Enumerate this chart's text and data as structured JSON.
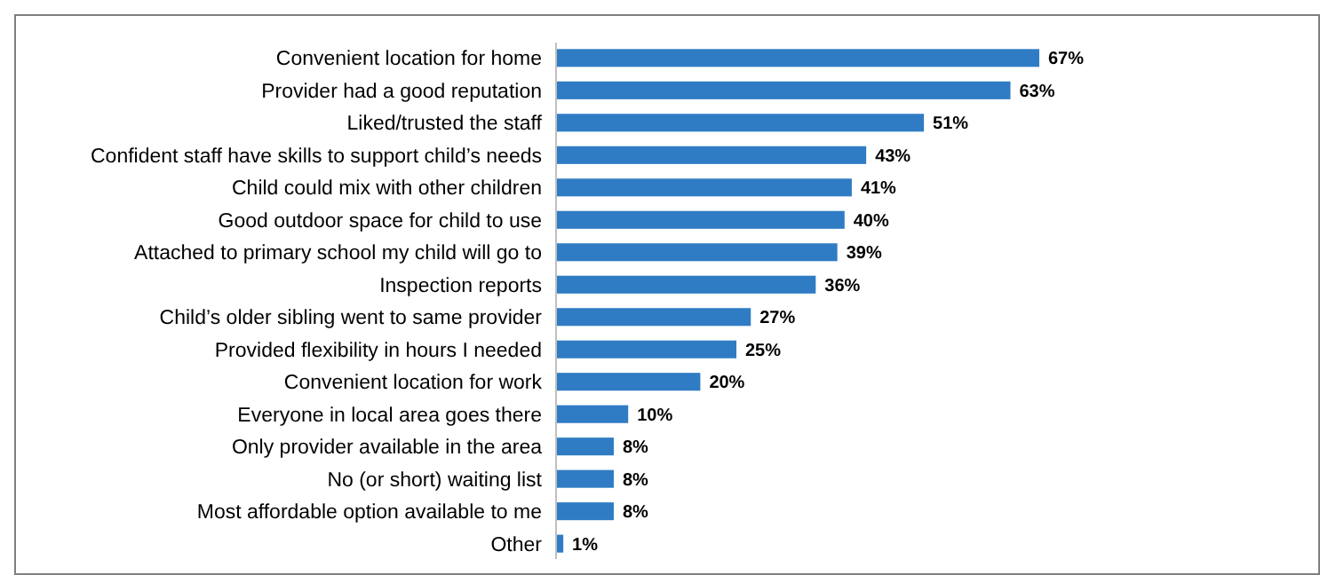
{
  "chart_data": {
    "type": "bar",
    "orientation": "horizontal",
    "categories": [
      "Convenient location for home",
      "Provider had a good reputation",
      "Liked/trusted the staff",
      "Confident staff have skills to support child’s needs",
      "Child could mix with other children",
      "Good outdoor space for child to use",
      "Attached to primary school my child will go to",
      "Inspection reports",
      "Child’s older sibling went to same provider",
      "Provided flexibility in hours I needed",
      "Convenient location for work",
      "Everyone in local area goes there",
      "Only provider available in the area",
      "No (or short) waiting list",
      "Most affordable option available to me",
      "Other"
    ],
    "values": [
      67,
      63,
      51,
      43,
      41,
      40,
      39,
      36,
      27,
      25,
      20,
      10,
      8,
      8,
      8,
      1
    ],
    "value_labels": [
      "67%",
      "63%",
      "51%",
      "43%",
      "41%",
      "40%",
      "39%",
      "36%",
      "27%",
      "25%",
      "20%",
      "10%",
      "8%",
      "8%",
      "8%",
      "1%"
    ],
    "color": "#2f7cc4"
  }
}
